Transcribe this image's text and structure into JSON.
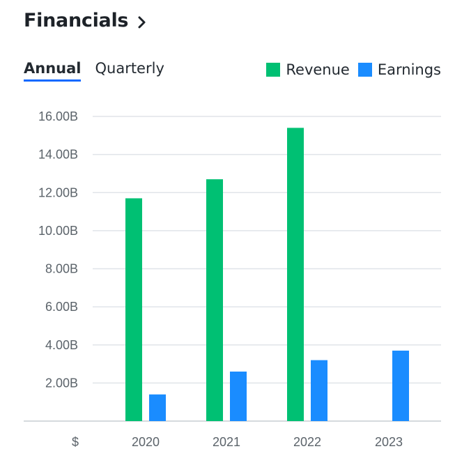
{
  "header": {
    "title": "Financials",
    "title_icon": "chevron-right-icon"
  },
  "tabs": [
    {
      "label": "Annual",
      "active": true
    },
    {
      "label": "Quarterly",
      "active": false
    }
  ],
  "colors": {
    "revenue": "#00c073",
    "earnings": "#1a8cff",
    "grid": "#e0e4e9",
    "tab_underline": "#0f69ff"
  },
  "chart_data": {
    "type": "bar",
    "categories": [
      "2020",
      "2021",
      "2022",
      "2023"
    ],
    "series": [
      {
        "name": "Revenue",
        "values": [
          11.7,
          12.7,
          15.4,
          null
        ]
      },
      {
        "name": "Earnings",
        "values": [
          1.4,
          2.6,
          3.2,
          3.7
        ]
      }
    ],
    "y_ticks": [
      "2.00B",
      "4.00B",
      "6.00B",
      "8.00B",
      "10.00B",
      "12.00B",
      "14.00B",
      "16.00B"
    ],
    "y_tick_values": [
      2,
      4,
      6,
      8,
      10,
      12,
      14,
      16
    ],
    "x_axis_unit": "$",
    "ylim": [
      0,
      16
    ],
    "grid": true,
    "legend_position": "top-right"
  }
}
